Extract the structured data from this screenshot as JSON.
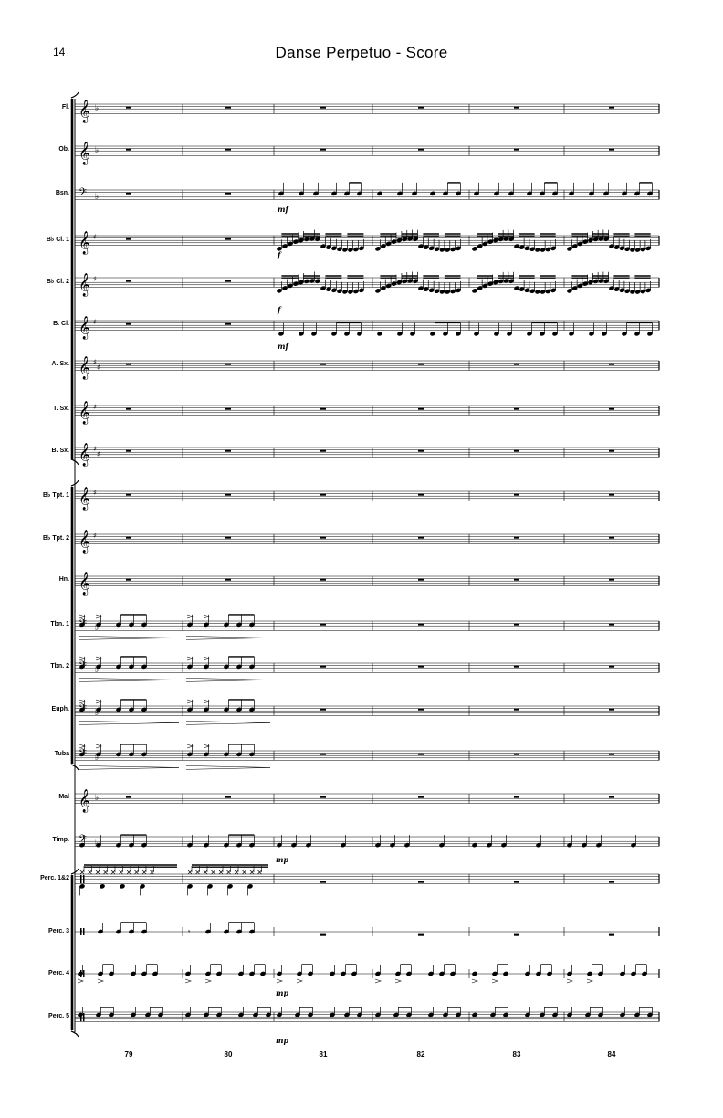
{
  "page": {
    "number": "14",
    "title": "Danse Perpetuo - Score"
  },
  "instruments": [
    {
      "label": "Fl.",
      "clef": "treble",
      "key": "Bb"
    },
    {
      "label": "Ob.",
      "clef": "treble",
      "key": "Bb"
    },
    {
      "label": "Bsn.",
      "clef": "bass",
      "key": "Bb"
    },
    {
      "label": "B♭ Cl. 1",
      "clef": "treble",
      "key": "G"
    },
    {
      "label": "B♭ Cl. 2",
      "clef": "treble",
      "key": "G"
    },
    {
      "label": "B. Cl.",
      "clef": "treble",
      "key": "G"
    },
    {
      "label": "A. Sx.",
      "clef": "treble",
      "key": "D"
    },
    {
      "label": "T. Sx.",
      "clef": "treble",
      "key": "G"
    },
    {
      "label": "B. Sx.",
      "clef": "treble",
      "key": "D"
    },
    {
      "label": "B♭ Tpt. 1",
      "clef": "treble",
      "key": "G"
    },
    {
      "label": "B♭ Tpt. 2",
      "clef": "treble",
      "key": "G"
    },
    {
      "label": "Hn.",
      "clef": "treble",
      "key": "C"
    },
    {
      "label": "Tbn. 1",
      "clef": "bass",
      "key": "Bb"
    },
    {
      "label": "Tbn. 2",
      "clef": "bass",
      "key": "Bb"
    },
    {
      "label": "Euph.",
      "clef": "bass",
      "key": "Bb"
    },
    {
      "label": "Tuba",
      "clef": "bass",
      "key": "Bb"
    },
    {
      "label": "Mal",
      "clef": "treble",
      "key": "Bb"
    },
    {
      "label": "Timp.",
      "clef": "bass",
      "key": "Bb"
    },
    {
      "label": "Perc. 1&2",
      "clef": "perc",
      "key": "C"
    },
    {
      "label": "Perc. 3",
      "clef": "perc1",
      "key": "C"
    },
    {
      "label": "Perc. 4",
      "clef": "perc1",
      "key": "C"
    },
    {
      "label": "Perc. 5",
      "clef": "perc",
      "key": "C"
    }
  ],
  "measure_numbers": [
    "79",
    "80",
    "81",
    "82",
    "83",
    "84"
  ],
  "dynamics": {
    "bsn": "mf",
    "cl1": "f",
    "cl2": "f",
    "bcl": "mf",
    "timp": "mp",
    "perc4": "mp",
    "perc5": "mp"
  },
  "colors": {
    "ink": "#000000",
    "paper": "#ffffff"
  }
}
